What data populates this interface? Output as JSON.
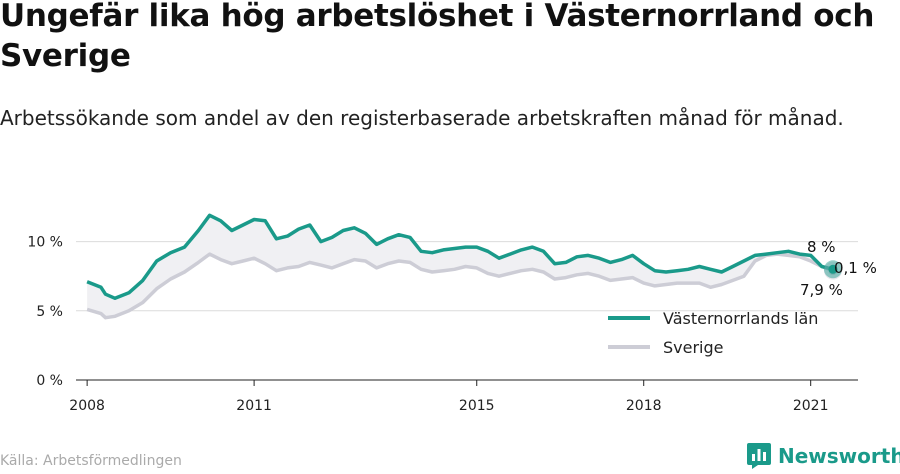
{
  "title": "Ungefär lika hög arbetslöshet i Västernorrland och Sverige",
  "subtitle": "Arbetssökande som andel av den registerbaserade arbetskraften månad för månad.",
  "source": "Källa: Arbetsförmedlingen",
  "brand": "Newsworthy",
  "colors": {
    "vasternorrland": "#1a9a8a",
    "sverige": "#cdcdd6",
    "fill": "#f0f0f3"
  },
  "chart_data": {
    "type": "line",
    "x_unit": "year",
    "xlim": [
      2007.8,
      2021.85
    ],
    "ylim": [
      0,
      12.5
    ],
    "x_ticks": [
      2008,
      2011,
      2015,
      2018,
      2021
    ],
    "x_tick_labels": [
      "2008",
      "2011",
      "2015",
      "2018",
      "2021"
    ],
    "y_ticks": [
      0,
      5,
      10
    ],
    "y_tick_labels": [
      "0 %",
      "5 %",
      "10 %"
    ],
    "grid": true,
    "legend_position": "inside-right",
    "series": [
      {
        "name": "Västernorrlands län",
        "x": [
          2008.0,
          2008.25,
          2008.33,
          2008.5,
          2008.75,
          2009.0,
          2009.25,
          2009.5,
          2009.75,
          2010.0,
          2010.2,
          2010.4,
          2010.6,
          2010.8,
          2011.0,
          2011.2,
          2011.4,
          2011.6,
          2011.8,
          2012.0,
          2012.2,
          2012.4,
          2012.6,
          2012.8,
          2013.0,
          2013.2,
          2013.4,
          2013.6,
          2013.8,
          2014.0,
          2014.2,
          2014.4,
          2014.6,
          2014.8,
          2015.0,
          2015.2,
          2015.4,
          2015.6,
          2015.8,
          2016.0,
          2016.2,
          2016.4,
          2016.6,
          2016.8,
          2017.0,
          2017.2,
          2017.4,
          2017.6,
          2017.8,
          2018.0,
          2018.2,
          2018.4,
          2018.6,
          2018.8,
          2019.0,
          2019.2,
          2019.4,
          2019.6,
          2019.8,
          2020.0,
          2020.2,
          2020.4,
          2020.6,
          2020.8,
          2021.0,
          2021.2,
          2021.4
        ],
        "values": [
          7.1,
          6.7,
          6.2,
          5.9,
          6.3,
          7.2,
          8.6,
          9.2,
          9.6,
          10.8,
          11.9,
          11.5,
          10.8,
          11.2,
          11.6,
          11.5,
          10.2,
          10.4,
          10.9,
          11.2,
          10.0,
          10.3,
          10.8,
          11.0,
          10.6,
          9.8,
          10.2,
          10.5,
          10.3,
          9.3,
          9.2,
          9.4,
          9.5,
          9.6,
          9.6,
          9.3,
          8.8,
          9.1,
          9.4,
          9.6,
          9.3,
          8.4,
          8.5,
          8.9,
          9.0,
          8.8,
          8.5,
          8.7,
          9.0,
          8.4,
          7.9,
          7.8,
          7.9,
          8.0,
          8.2,
          8.0,
          7.8,
          8.2,
          8.6,
          9.0,
          9.1,
          9.2,
          9.3,
          9.1,
          9.0,
          8.2,
          8.0
        ]
      },
      {
        "name": "Sverige",
        "x": [
          2008.0,
          2008.25,
          2008.33,
          2008.5,
          2008.75,
          2009.0,
          2009.25,
          2009.5,
          2009.75,
          2010.0,
          2010.2,
          2010.4,
          2010.6,
          2010.8,
          2011.0,
          2011.2,
          2011.4,
          2011.6,
          2011.8,
          2012.0,
          2012.2,
          2012.4,
          2012.6,
          2012.8,
          2013.0,
          2013.2,
          2013.4,
          2013.6,
          2013.8,
          2014.0,
          2014.2,
          2014.4,
          2014.6,
          2014.8,
          2015.0,
          2015.2,
          2015.4,
          2015.6,
          2015.8,
          2016.0,
          2016.2,
          2016.4,
          2016.6,
          2016.8,
          2017.0,
          2017.2,
          2017.4,
          2017.6,
          2017.8,
          2018.0,
          2018.2,
          2018.4,
          2018.6,
          2018.8,
          2019.0,
          2019.2,
          2019.4,
          2019.6,
          2019.8,
          2020.0,
          2020.2,
          2020.4,
          2020.6,
          2020.8,
          2021.0,
          2021.2,
          2021.4
        ],
        "values": [
          5.1,
          4.8,
          4.5,
          4.6,
          5.0,
          5.6,
          6.6,
          7.3,
          7.8,
          8.5,
          9.1,
          8.7,
          8.4,
          8.6,
          8.8,
          8.4,
          7.9,
          8.1,
          8.2,
          8.5,
          8.3,
          8.1,
          8.4,
          8.7,
          8.6,
          8.1,
          8.4,
          8.6,
          8.5,
          8.0,
          7.8,
          7.9,
          8.0,
          8.2,
          8.1,
          7.7,
          7.5,
          7.7,
          7.9,
          8.0,
          7.8,
          7.3,
          7.4,
          7.6,
          7.7,
          7.5,
          7.2,
          7.3,
          7.4,
          7.0,
          6.8,
          6.9,
          7.0,
          7.0,
          7.0,
          6.7,
          6.9,
          7.2,
          7.5,
          8.6,
          9.0,
          9.1,
          9.0,
          8.9,
          8.6,
          8.2,
          7.9
        ]
      }
    ],
    "annotations": [
      {
        "label": "8 %",
        "series": "Västernorrlands län"
      },
      {
        "label": "7,9 %",
        "series": "Sverige"
      },
      {
        "label": "0,1 %",
        "type": "difference"
      }
    ]
  }
}
